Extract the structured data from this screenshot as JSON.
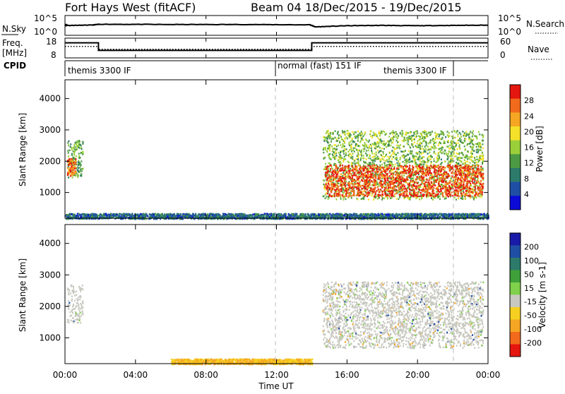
{
  "header": {
    "title": "Fort Hays West (fitACF)",
    "beam": "Beam 04",
    "date_range": "18/Dec/2015 - 19/Dec/2015"
  },
  "panels": {
    "nsky": {
      "label": "N.Sky",
      "left_ticks": [
        "10^5",
        "10^0"
      ],
      "right_label": "N.Search",
      "right_ticks": [
        "10^5",
        "10^0"
      ]
    },
    "freq": {
      "label_line1": "Freq.",
      "label_line2": "[MHz]",
      "left_ticks": [
        "18",
        "8"
      ],
      "right_label": "Nave",
      "right_ticks": [
        "60",
        "0"
      ]
    },
    "cpid": {
      "label": "CPID",
      "segments": [
        "themis 3300 IF",
        "normal (fast) 151 IF",
        "themis 3300 IF"
      ]
    },
    "power": {
      "ylabel": "Slant Range [km]",
      "yticks": [
        "1000",
        "2000",
        "3000",
        "4000"
      ],
      "colorbar_label": "Power [dB]",
      "colorbar_ticks": [
        "4",
        "8",
        "12",
        "16",
        "20",
        "24",
        "28"
      ]
    },
    "velocity": {
      "ylabel": "Slant Range [km]",
      "yticks": [
        "1000",
        "2000",
        "3000",
        "4000"
      ],
      "colorbar_label": "Velocity [m s-1]",
      "colorbar_ticks": [
        "200",
        "100",
        "50",
        "15",
        "-15",
        "-50",
        "-100",
        "-200"
      ]
    },
    "xaxis": {
      "label": "Time UT",
      "ticks": [
        "00:00",
        "04:00",
        "08:00",
        "12:00",
        "16:00",
        "20:00",
        "00:00"
      ]
    }
  },
  "colors": {
    "power_scale": [
      "#0b0bd8",
      "#1f4fa5",
      "#2b7a6a",
      "#4c9a44",
      "#9bcf3a",
      "#f5e12a",
      "#f5a623",
      "#f26a1b",
      "#e5150f"
    ],
    "velocity_scale": [
      "#1a1aa8",
      "#1f4fa5",
      "#2b7a6a",
      "#3fa03a",
      "#7fd04a",
      "#c8c8c0",
      "#f5d020",
      "#f5a623",
      "#f26a1b",
      "#e5150f"
    ]
  },
  "chart_data": [
    {
      "type": "line",
      "title": "N.Sky / N.Search",
      "x_unit": "hours UT",
      "xlim": [
        0,
        24
      ],
      "series": [
        {
          "name": "N.Sky",
          "x": [
            0,
            0.15,
            1.5,
            2.0,
            6,
            10,
            13.9,
            14.2,
            16,
            18,
            20,
            22,
            24
          ],
          "values": [
            3.2,
            3.1,
            3.2,
            3.5,
            3.4,
            3.4,
            3.3,
            2.6,
            3.0,
            3.1,
            3.0,
            3.1,
            3.2
          ]
        }
      ]
    },
    {
      "type": "line",
      "title": "Freq. / Nave",
      "x_unit": "hours UT",
      "xlim": [
        0,
        24
      ],
      "series": [
        {
          "name": "Freq.",
          "x": [
            0,
            1.9,
            1.9,
            14.0,
            14.0,
            24
          ],
          "values": [
            16.5,
            16.5,
            12.0,
            12.0,
            16.5,
            16.5
          ]
        },
        {
          "name": "Nave",
          "x": [
            0,
            1.9,
            1.9,
            14.0,
            14.0,
            24
          ],
          "values": [
            38,
            38,
            28,
            28,
            38,
            38
          ]
        }
      ]
    },
    {
      "type": "table",
      "title": "CPID",
      "columns": [
        "start_UT",
        "end_UT",
        "mode"
      ],
      "rows": [
        [
          "00:00",
          "12:00",
          "themis 3300 IF"
        ],
        [
          "12:00",
          "22:00",
          "normal (fast) 151 IF"
        ],
        [
          "22:00",
          "24:00",
          "themis 3300 IF"
        ]
      ]
    },
    {
      "type": "heatmap",
      "title": "Power [dB]",
      "xlabel": "Time UT",
      "ylabel": "Slant Range [km]",
      "xlim": [
        0,
        24
      ],
      "ylim": [
        180,
        4600
      ],
      "zlim": [
        0,
        30
      ],
      "regions": [
        {
          "t0": 0.1,
          "t1": 1.0,
          "r0": 1500,
          "r1": 2700,
          "power": 12
        },
        {
          "t0": 0.1,
          "t1": 0.6,
          "r0": 1550,
          "r1": 2100,
          "power": 26
        },
        {
          "t0": 14.6,
          "t1": 23.7,
          "r0": 800,
          "r1": 3000,
          "power": 14
        },
        {
          "t0": 14.7,
          "t1": 23.7,
          "r0": 900,
          "r1": 1900,
          "power": 28
        },
        {
          "t0": 0,
          "t1": 24,
          "r0": 180,
          "r1": 350,
          "power": 6
        }
      ]
    },
    {
      "type": "heatmap",
      "title": "Velocity [m s-1]",
      "xlabel": "Time UT",
      "ylabel": "Slant Range [km]",
      "xlim": [
        0,
        24
      ],
      "ylim": [
        180,
        4600
      ],
      "zlim": [
        -200,
        200
      ],
      "regions": [
        {
          "t0": 0.1,
          "t1": 1.0,
          "r0": 1500,
          "r1": 2700,
          "velocity": 0
        },
        {
          "t0": 14.6,
          "t1": 23.7,
          "r0": 700,
          "r1": 2800,
          "velocity": 0
        },
        {
          "t0": 6,
          "t1": 14,
          "r0": 180,
          "r1": 350,
          "velocity": -60
        }
      ]
    }
  ]
}
